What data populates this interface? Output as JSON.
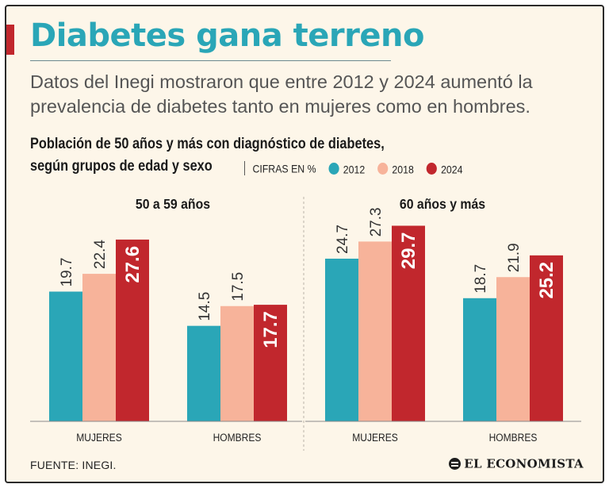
{
  "header": {
    "title": "Diabetes gana terreno",
    "subtitle_line1": "Datos del Inegi mostraron que entre 2012 y 2024 aumentó la",
    "subtitle_line2": "prevalencia de diabetes tanto en mujeres como en hombres."
  },
  "chart_header": {
    "title_line1": "Población de 50 años y más con diagnóstico de diabetes,",
    "title_line2": "según grupos de edad y sexo",
    "units": "CIFRAS EN %"
  },
  "colors": {
    "2012": "#2aa6b7",
    "2018": "#f7b39a",
    "2024": "#c1272d",
    "text_dark": "#1a1a1a"
  },
  "chart_data": {
    "type": "bar",
    "title": "Población de 50 años y más con diagnóstico de diabetes, según grupos de edad y sexo",
    "units": "%",
    "ylim": [
      0,
      35
    ],
    "grid": false,
    "legend": "top",
    "series_names": [
      "2012",
      "2018",
      "2024"
    ],
    "groups": [
      {
        "label": "50 a 59 años",
        "categories": [
          {
            "label": "MUJERES",
            "values": [
              19.7,
              22.4,
              27.6
            ]
          },
          {
            "label": "HOMBRES",
            "values": [
              14.5,
              17.5,
              17.7
            ]
          }
        ]
      },
      {
        "label": "60 años y más",
        "categories": [
          {
            "label": "MUJERES",
            "values": [
              24.7,
              27.3,
              29.7
            ]
          },
          {
            "label": "HOMBRES",
            "values": [
              18.7,
              21.9,
              25.2
            ]
          }
        ]
      }
    ]
  },
  "footer": {
    "source": "FUENTE: INEGI.",
    "brand": "EL ECONOMISTA"
  }
}
